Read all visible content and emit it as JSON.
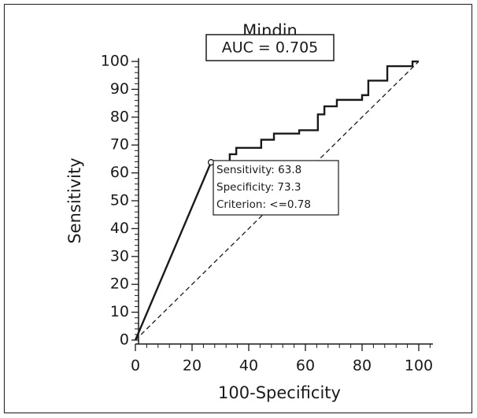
{
  "chart_data": {
    "type": "line",
    "title": "Mindin",
    "x_label": "100-Specificity",
    "y_label": "Sensitivity",
    "annotation_box": "AUC = 0.705",
    "callout": [
      "Sensitivity: 63.8",
      "Specificity: 73.3",
      "Criterion: <=0.78"
    ],
    "marker": {
      "x": 26.7,
      "y": 63.8
    },
    "xlim": [
      0,
      105
    ],
    "ylim": [
      0,
      101
    ],
    "xticks": [
      0,
      20,
      40,
      60,
      80,
      100
    ],
    "yticks": [
      0,
      10,
      20,
      30,
      40,
      50,
      60,
      70,
      80,
      90,
      100
    ],
    "xminorticks": [
      4,
      8,
      12,
      16,
      24,
      28,
      32,
      36,
      44,
      48,
      52,
      56,
      64,
      68,
      72,
      76,
      84,
      88,
      92,
      96,
      104
    ],
    "yminorticks": [
      2,
      4,
      6,
      8,
      12,
      14,
      16,
      18,
      22,
      24,
      26,
      28,
      32,
      34,
      36,
      38,
      42,
      44,
      46,
      48,
      52,
      54,
      56,
      58,
      62,
      64,
      66,
      68,
      72,
      74,
      76,
      78,
      82,
      84,
      86,
      88,
      92,
      94,
      96,
      98
    ],
    "series": [
      {
        "color": "#1a1a1a",
        "dashed": false,
        "x": [
          0,
          26.7,
          33.3,
          33.3,
          35.6,
          35.6,
          44.4,
          44.4,
          48.9,
          48.9,
          57.8,
          57.8,
          64.4,
          64.4,
          66.7,
          66.7,
          71.1,
          71.1,
          80,
          80,
          82.2,
          82.2,
          88.9,
          88.9,
          97.8,
          97.8,
          100
        ],
        "values": [
          0,
          63.8,
          63.8,
          66.7,
          66.7,
          69,
          69,
          71.9,
          71.9,
          74.1,
          74.1,
          75.3,
          75.3,
          81,
          81,
          83.9,
          83.9,
          86.2,
          86.2,
          87.9,
          87.9,
          93.1,
          93.1,
          98.3,
          98.3,
          100,
          100
        ]
      },
      {
        "color": "#1a1a1a",
        "dashed": true,
        "x": [
          0,
          100
        ],
        "values": [
          0,
          100
        ]
      }
    ]
  }
}
